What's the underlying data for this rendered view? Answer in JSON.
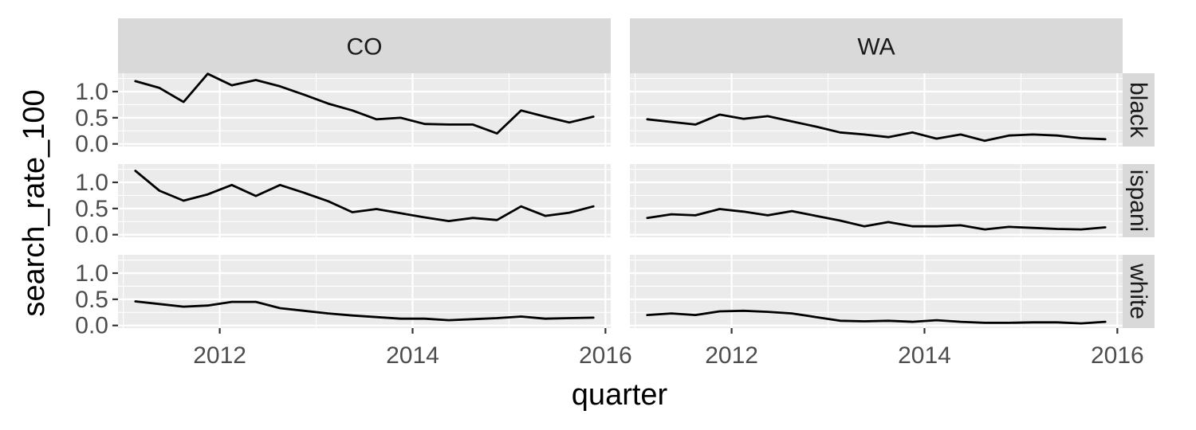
{
  "chart_data": {
    "type": "line",
    "x_variable": "quarter",
    "y_variable": "search_rate_100",
    "xlabel": "quarter",
    "ylabel": "search_rate_100",
    "xlim": [
      2011.0,
      2016.0
    ],
    "ylim": [
      0.0,
      1.3
    ],
    "x_ticks": [
      2012,
      2014,
      2016
    ],
    "x_tick_labels": [
      "2012",
      "2014",
      "2016"
    ],
    "y_ticks": [
      0.0,
      0.5,
      1.0
    ],
    "y_tick_labels": [
      "0.0",
      "0.5",
      "1.0"
    ],
    "grid": true,
    "facet_columns": [
      "CO",
      "WA"
    ],
    "facet_rows": [
      "black",
      "hispanic",
      "white"
    ],
    "facet_row_labels_shown": [
      "black",
      "ispani",
      "white"
    ],
    "x": [
      2011.125,
      2011.375,
      2011.625,
      2011.875,
      2012.125,
      2012.375,
      2012.625,
      2012.875,
      2013.125,
      2013.375,
      2013.625,
      2013.875,
      2014.125,
      2014.375,
      2014.625,
      2014.875,
      2015.125,
      2015.375,
      2015.625,
      2015.875
    ],
    "series": [
      {
        "state": "CO",
        "race": "black",
        "values": [
          1.2,
          1.07,
          0.8,
          1.34,
          1.12,
          1.22,
          1.1,
          0.94,
          0.77,
          0.64,
          0.47,
          0.5,
          0.38,
          0.37,
          0.37,
          0.2,
          0.64,
          0.52,
          0.41,
          0.52
        ]
      },
      {
        "state": "CO",
        "race": "hispanic",
        "values": [
          1.22,
          0.84,
          0.65,
          0.77,
          0.95,
          0.74,
          0.95,
          0.8,
          0.64,
          0.43,
          0.49,
          0.41,
          0.33,
          0.26,
          0.32,
          0.28,
          0.54,
          0.36,
          0.42,
          0.54
        ]
      },
      {
        "state": "CO",
        "race": "white",
        "values": [
          0.46,
          0.41,
          0.36,
          0.38,
          0.45,
          0.45,
          0.33,
          0.28,
          0.23,
          0.19,
          0.16,
          0.13,
          0.13,
          0.1,
          0.12,
          0.14,
          0.17,
          0.13,
          0.14,
          0.15
        ]
      },
      {
        "state": "WA",
        "race": "black",
        "values": [
          0.47,
          0.42,
          0.37,
          0.56,
          0.48,
          0.53,
          0.43,
          0.33,
          0.22,
          0.18,
          0.13,
          0.22,
          0.1,
          0.18,
          0.06,
          0.16,
          0.18,
          0.16,
          0.11,
          0.09
        ]
      },
      {
        "state": "WA",
        "race": "hispanic",
        "values": [
          0.32,
          0.39,
          0.37,
          0.49,
          0.44,
          0.37,
          0.45,
          0.36,
          0.27,
          0.16,
          0.24,
          0.16,
          0.16,
          0.18,
          0.1,
          0.15,
          0.13,
          0.11,
          0.1,
          0.14
        ]
      },
      {
        "state": "WA",
        "race": "white",
        "values": [
          0.2,
          0.23,
          0.2,
          0.27,
          0.28,
          0.26,
          0.23,
          0.16,
          0.09,
          0.08,
          0.09,
          0.07,
          0.1,
          0.07,
          0.05,
          0.05,
          0.06,
          0.06,
          0.04,
          0.07
        ]
      }
    ]
  }
}
